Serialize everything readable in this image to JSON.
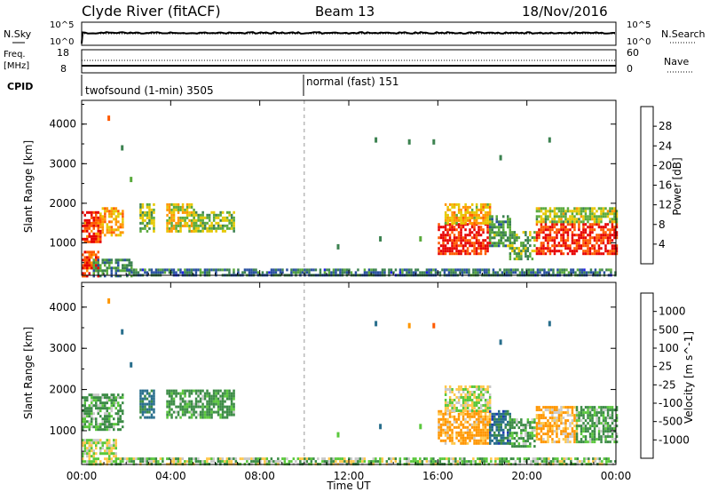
{
  "header": {
    "station": "Clyde River (fitACF)",
    "beam": "Beam 13",
    "date": "18/Nov/2016"
  },
  "nsky_panel": {
    "left_label": "N.Sky",
    "right_label": "N.Search",
    "left_ticks": [
      "10^5",
      "10^0"
    ],
    "right_ticks": [
      "10^5",
      "10^0"
    ]
  },
  "freq_panel": {
    "left_label_top": "Freq.",
    "left_label_bottom": "[MHz]",
    "left_ticks": [
      "18",
      "8"
    ],
    "right_ticks": [
      "60",
      "0"
    ],
    "right_label": "Nave",
    "cpid_label": "CPID",
    "modes": [
      {
        "label": "twofsound (1-min) 3505",
        "start_hour": 0
      },
      {
        "label": "normal (fast) 151",
        "start_hour": 10
      }
    ]
  },
  "colors": {
    "power_scale": [
      "#1e1ee6",
      "#2850a0",
      "#3c8250",
      "#5aaa3c",
      "#e6c800",
      "#ff9600",
      "#ff5a00",
      "#e60000"
    ],
    "velocity_scale": [
      "#e60000",
      "#ff5a00",
      "#ff9600",
      "#ffc84b",
      "#c8c8c8",
      "#5ac83c",
      "#3c8c46",
      "#286e8c",
      "#1e3cb4"
    ],
    "grid_line": "#bbbbbb"
  },
  "chart_data": [
    {
      "type": "heatmap",
      "name": "Power panel",
      "ylabel": "Slant Range [km]",
      "xlabel": "",
      "x_ticks": [
        "00:00",
        "04:00",
        "08:00",
        "12:00",
        "16:00",
        "20:00",
        "00:00"
      ],
      "y_ticks": [
        "1000",
        "2000",
        "3000",
        "4000"
      ],
      "xlim": [
        0,
        24
      ],
      "ylim": [
        180,
        4600
      ],
      "colorbar": {
        "label": "Power [dB]",
        "ticks": [
          "4",
          "8",
          "12",
          "16",
          "20",
          "24",
          "28"
        ],
        "range": [
          0,
          30
        ]
      },
      "mode_change_hour": 10,
      "regions": [
        {
          "t0": 0.0,
          "t1": 0.8,
          "r0": 1000,
          "r1": 1800,
          "v": 26
        },
        {
          "t0": 0.8,
          "t1": 1.8,
          "r0": 1200,
          "r1": 1900,
          "v": 20
        },
        {
          "t0": 2.6,
          "t1": 3.2,
          "r0": 1300,
          "r1": 2000,
          "v": 14
        },
        {
          "t0": 3.8,
          "t1": 5.0,
          "r0": 1300,
          "r1": 2000,
          "v": 17
        },
        {
          "t0": 5.0,
          "t1": 6.8,
          "r0": 1300,
          "r1": 1800,
          "v": 14
        },
        {
          "t0": 0.0,
          "t1": 0.7,
          "r0": 180,
          "r1": 800,
          "v": 26
        },
        {
          "t0": 0.5,
          "t1": 2.2,
          "r0": 180,
          "r1": 600,
          "v": 10
        },
        {
          "t0": 2.0,
          "t1": 24.0,
          "r0": 180,
          "r1": 350,
          "v": 8
        },
        {
          "t0": 16.0,
          "t1": 18.3,
          "r0": 700,
          "r1": 1500,
          "v": 27
        },
        {
          "t0": 16.3,
          "t1": 18.3,
          "r0": 1500,
          "r1": 2000,
          "v": 19
        },
        {
          "t0": 18.3,
          "t1": 19.2,
          "r0": 900,
          "r1": 1700,
          "v": 11
        },
        {
          "t0": 19.2,
          "t1": 20.3,
          "r0": 600,
          "r1": 1300,
          "v": 12
        },
        {
          "t0": 20.4,
          "t1": 24.0,
          "r0": 700,
          "r1": 1500,
          "v": 27
        },
        {
          "t0": 20.4,
          "t1": 24.0,
          "r0": 1500,
          "r1": 1900,
          "v": 15
        }
      ],
      "specks": [
        {
          "t": 1.2,
          "r": 4150,
          "v": 24
        },
        {
          "t": 1.8,
          "r": 3400,
          "v": 8
        },
        {
          "t": 13.2,
          "r": 3600,
          "v": 8
        },
        {
          "t": 14.7,
          "r": 3550,
          "v": 8
        },
        {
          "t": 15.8,
          "r": 3550,
          "v": 10
        },
        {
          "t": 18.8,
          "r": 3150,
          "v": 8
        },
        {
          "t": 21.0,
          "r": 3600,
          "v": 8
        },
        {
          "t": 2.2,
          "r": 2600,
          "v": 14
        },
        {
          "t": 11.5,
          "r": 900,
          "v": 8
        },
        {
          "t": 13.4,
          "r": 1100,
          "v": 8
        },
        {
          "t": 15.2,
          "r": 1100,
          "v": 12
        }
      ]
    },
    {
      "type": "heatmap",
      "name": "Velocity panel",
      "ylabel": "Slant Range [km]",
      "xlabel": "Time UT",
      "x_ticks": [
        "00:00",
        "04:00",
        "08:00",
        "12:00",
        "16:00",
        "20:00",
        "00:00"
      ],
      "y_ticks": [
        "1000",
        "2000",
        "3000",
        "4000"
      ],
      "xlim": [
        0,
        24
      ],
      "ylim": [
        180,
        4600
      ],
      "colorbar": {
        "label": "Velocity [m s^-1]",
        "ticks": [
          "1000",
          "500",
          "100",
          "25",
          "-25",
          "-100",
          "-500",
          "-1000"
        ],
        "range": [
          -1200,
          1200
        ]
      },
      "mode_change_hour": 10,
      "regions": [
        {
          "t0": 0.0,
          "t1": 1.8,
          "r0": 1000,
          "r1": 1900,
          "v": 150
        },
        {
          "t0": 2.6,
          "t1": 3.2,
          "r0": 1300,
          "r1": 2000,
          "v": 600
        },
        {
          "t0": 3.8,
          "t1": 6.8,
          "r0": 1300,
          "r1": 2000,
          "v": 200
        },
        {
          "t0": 0.0,
          "t1": 1.5,
          "r0": 180,
          "r1": 800,
          "v": 0
        },
        {
          "t0": 1.5,
          "t1": 24.0,
          "r0": 180,
          "r1": 350,
          "v": 60
        },
        {
          "t0": 16.0,
          "t1": 18.3,
          "r0": 700,
          "r1": 1500,
          "v": -200
        },
        {
          "t0": 16.3,
          "t1": 18.3,
          "r0": 1500,
          "r1": 2100,
          "v": 0
        },
        {
          "t0": 18.3,
          "t1": 19.2,
          "r0": 700,
          "r1": 1500,
          "v": 700
        },
        {
          "t0": 19.2,
          "t1": 20.3,
          "r0": 600,
          "r1": 1300,
          "v": 150
        },
        {
          "t0": 20.4,
          "t1": 22.2,
          "r0": 700,
          "r1": 1600,
          "v": -150
        },
        {
          "t0": 22.2,
          "t1": 24.0,
          "r0": 700,
          "r1": 1600,
          "v": 150
        }
      ],
      "specks": [
        {
          "t": 1.2,
          "r": 4150,
          "v": -200
        },
        {
          "t": 1.8,
          "r": 3400,
          "v": 600
        },
        {
          "t": 13.2,
          "r": 3600,
          "v": 600
        },
        {
          "t": 14.7,
          "r": 3550,
          "v": -150
        },
        {
          "t": 15.8,
          "r": 3550,
          "v": -600
        },
        {
          "t": 18.8,
          "r": 3150,
          "v": 600
        },
        {
          "t": 21.0,
          "r": 3600,
          "v": 600
        },
        {
          "t": 2.2,
          "r": 2600,
          "v": 600
        },
        {
          "t": 11.5,
          "r": 900,
          "v": 60
        },
        {
          "t": 13.4,
          "r": 1100,
          "v": 600
        },
        {
          "t": 15.2,
          "r": 1100,
          "v": 60
        }
      ]
    }
  ]
}
